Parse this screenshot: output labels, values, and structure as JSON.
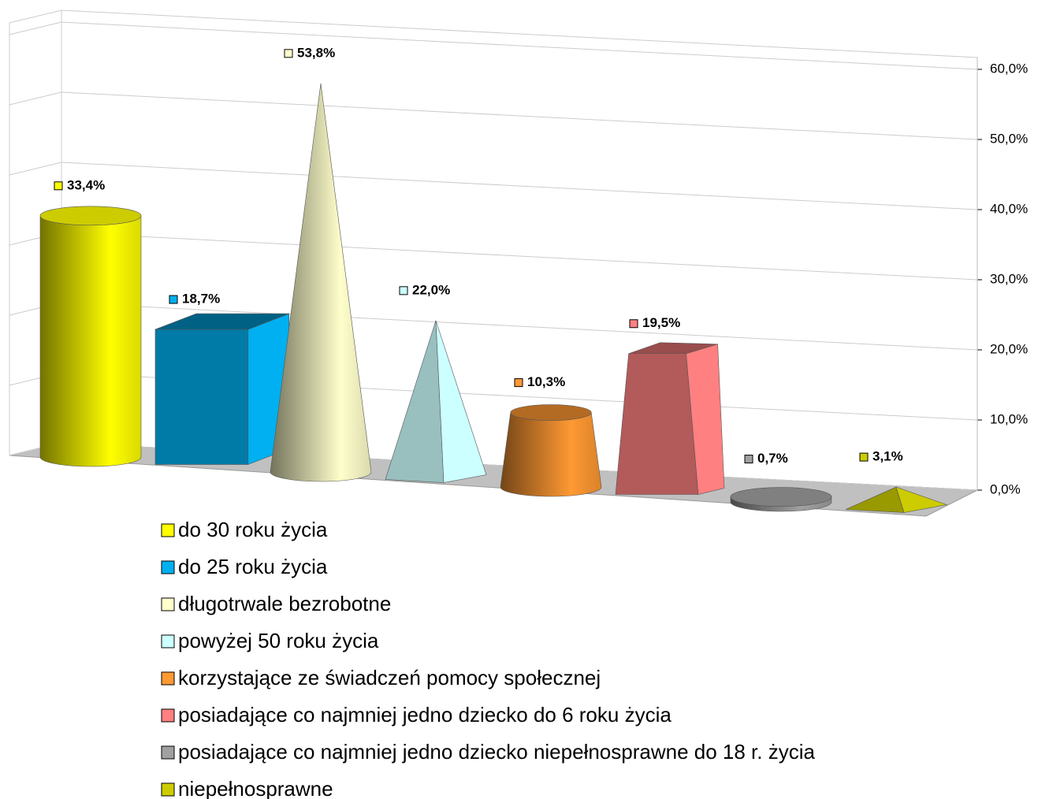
{
  "chart_data": {
    "type": "bar3d",
    "categories": [
      "do 30 roku życia",
      "do 25 roku życia",
      "długotrwale bezrobotne",
      "powyżej 50 roku życia",
      "korzystające ze świadczeń pomocy społecznej",
      "posiadające co najmniej jedno dziecko do 6 roku życia",
      "posiadające co najmniej jedno dziecko niepełnosprawne do 18 r. życia",
      "niepełnosprawne"
    ],
    "values": [
      33.4,
      18.7,
      53.8,
      22.0,
      10.3,
      19.5,
      0.7,
      3.1
    ],
    "value_labels": [
      "33,4%",
      "18,7%",
      "53,8%",
      "22,0%",
      "10,3%",
      "19,5%",
      "0,7%",
      "3,1%"
    ],
    "colors": [
      "#ffff00",
      "#00b0f0",
      "#ffffcc",
      "#ccffff",
      "#ff9933",
      "#ff8080",
      "#a0a0a0",
      "#cccc00"
    ],
    "ylim": [
      0,
      60
    ],
    "yticks": [
      {
        "value": 0,
        "label": "0,0%"
      },
      {
        "value": 10,
        "label": "10,0%"
      },
      {
        "value": 20,
        "label": "20,0%"
      },
      {
        "value": 30,
        "label": "30,0%"
      },
      {
        "value": 40,
        "label": "40,0%"
      },
      {
        "value": 50,
        "label": "50,0%"
      },
      {
        "value": 60,
        "label": "60,0%"
      }
    ],
    "grid": true,
    "legend": "bottom"
  }
}
